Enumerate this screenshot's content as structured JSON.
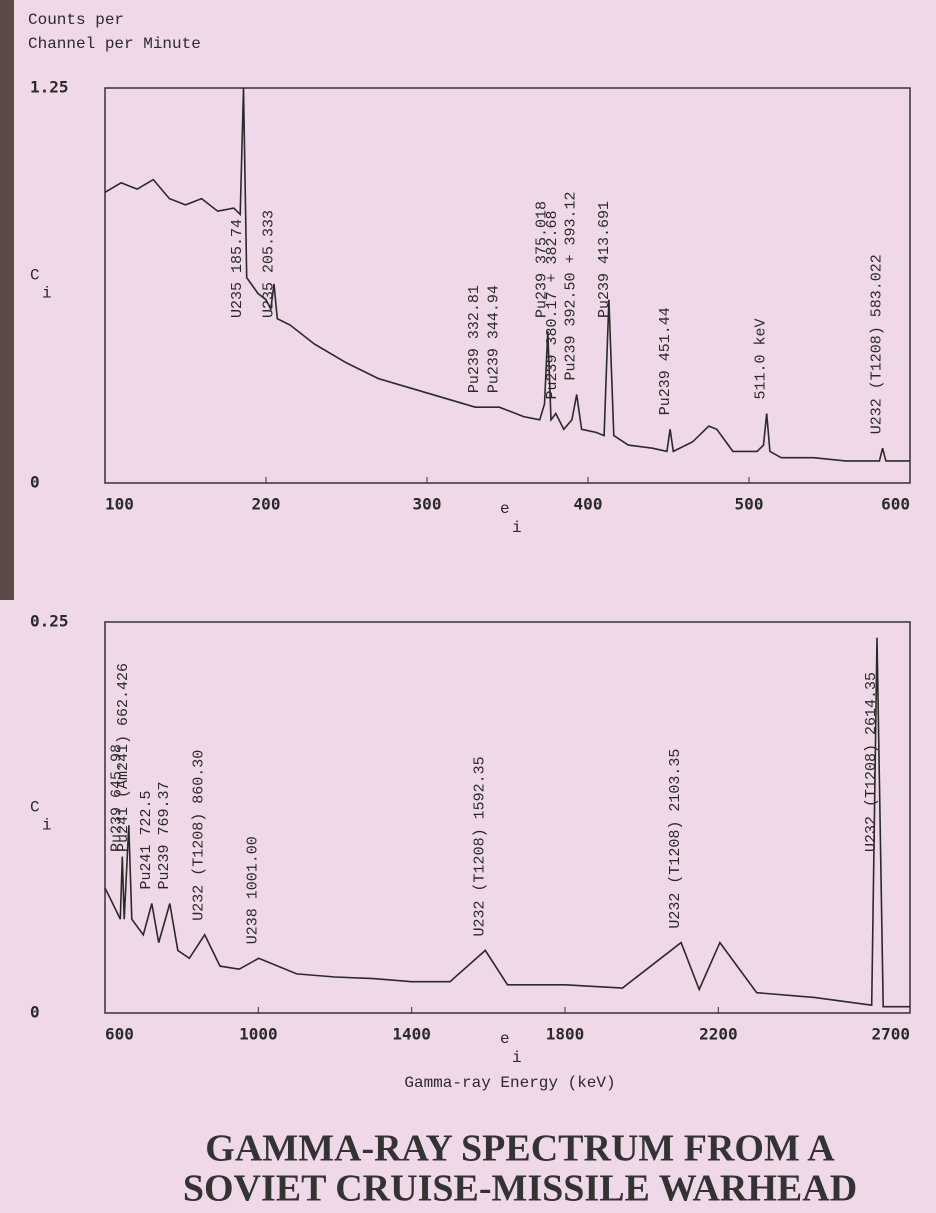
{
  "title": [
    "GAMMA-RAY SPECTRUM FROM A",
    "SOVIET CRUISE-MISSILE WARHEAD"
  ],
  "chart_data": [
    {
      "type": "line",
      "ylabel": [
        "Counts per",
        "Channel per Minute"
      ],
      "axis_symbol_y": [
        "C",
        "i"
      ],
      "axis_symbol_x": [
        "e",
        "i"
      ],
      "color": "#2a2a2a",
      "xlim": [
        100,
        600
      ],
      "ylim": [
        0,
        1.25
      ],
      "xticks": [
        100,
        200,
        300,
        400,
        500,
        600
      ],
      "yticks": [
        0,
        1.25
      ],
      "x": [
        100,
        110,
        120,
        130,
        140,
        150,
        160,
        170,
        180,
        184,
        186,
        188,
        195,
        200,
        203,
        205,
        207,
        215,
        230,
        250,
        270,
        290,
        310,
        330,
        345,
        360,
        370,
        373,
        375,
        377,
        380,
        385,
        390,
        393,
        396,
        405,
        410,
        413,
        416,
        425,
        440,
        449,
        451,
        453,
        465,
        475,
        480,
        490,
        505,
        509,
        511,
        513,
        520,
        540,
        560,
        575,
        581,
        583,
        585,
        600
      ],
      "values": [
        0.92,
        0.95,
        0.93,
        0.96,
        0.9,
        0.88,
        0.9,
        0.86,
        0.87,
        0.85,
        1.25,
        0.65,
        0.6,
        0.58,
        0.55,
        0.63,
        0.52,
        0.5,
        0.44,
        0.38,
        0.33,
        0.3,
        0.27,
        0.24,
        0.24,
        0.21,
        0.2,
        0.25,
        0.48,
        0.2,
        0.22,
        0.17,
        0.2,
        0.28,
        0.17,
        0.16,
        0.15,
        0.58,
        0.15,
        0.12,
        0.11,
        0.1,
        0.17,
        0.1,
        0.13,
        0.18,
        0.17,
        0.1,
        0.1,
        0.12,
        0.22,
        0.1,
        0.08,
        0.08,
        0.07,
        0.07,
        0.07,
        0.11,
        0.07,
        0.07
      ],
      "annotations": [
        {
          "text": "U235 185.74",
          "x": 185.74
        },
        {
          "text": "U235 205.333",
          "x": 205.333
        },
        {
          "text": "Pu239 332.81",
          "x": 332.81
        },
        {
          "text": "Pu239 344.94",
          "x": 344.94
        },
        {
          "text": "Pu239 375.018",
          "x": 375.018
        },
        {
          "text": "Pu239 380.17 + 382.68",
          "x": 381.4
        },
        {
          "text": "Pu239 392.50 + 393.12",
          "x": 392.8
        },
        {
          "text": "Pu239 413.691",
          "x": 413.691
        },
        {
          "text": "Pu239 451.44",
          "x": 451.44
        },
        {
          "text": "511.0 keV",
          "x": 511
        },
        {
          "text": "U232 (T1208) 583.022",
          "x": 583.022
        }
      ]
    },
    {
      "type": "line",
      "xlabel": "Gamma-ray Energy (keV)",
      "axis_symbol_y": [
        "C",
        "i"
      ],
      "axis_symbol_x": [
        "e",
        "i"
      ],
      "color": "#2a2a2a",
      "xlim": [
        600,
        2700
      ],
      "ylim": [
        0,
        0.25
      ],
      "xticks": [
        600,
        1000,
        1400,
        1800,
        2200,
        2700
      ],
      "yticks": [
        0,
        0.25
      ],
      "x": [
        600,
        620,
        640,
        645,
        650,
        662,
        670,
        700,
        722,
        740,
        769,
        790,
        820,
        860,
        900,
        950,
        1001,
        1100,
        1200,
        1300,
        1400,
        1500,
        1592,
        1650,
        1800,
        1950,
        2103,
        2150,
        2204,
        2300,
        2450,
        2600,
        2614,
        2630,
        2700
      ],
      "values": [
        0.08,
        0.07,
        0.06,
        0.1,
        0.06,
        0.12,
        0.06,
        0.05,
        0.07,
        0.045,
        0.07,
        0.04,
        0.035,
        0.05,
        0.03,
        0.028,
        0.035,
        0.025,
        0.023,
        0.022,
        0.02,
        0.02,
        0.04,
        0.018,
        0.018,
        0.016,
        0.045,
        0.015,
        0.045,
        0.013,
        0.01,
        0.005,
        0.24,
        0.004,
        0.004
      ],
      "annotations": [
        {
          "text": "Pu239 645.98",
          "x": 645.98
        },
        {
          "text": "Pu241 (Am241) 662.426",
          "x": 662.426
        },
        {
          "text": "Pu241 722.5",
          "x": 722.5
        },
        {
          "text": "Pu239 769.37",
          "x": 769.37
        },
        {
          "text": "U232 (T1208) 860.30",
          "x": 860.3
        },
        {
          "text": "U238 1001.00",
          "x": 1001
        },
        {
          "text": "U232 (T1208) 1592.35",
          "x": 1592.35
        },
        {
          "text": "U232 (T1208) 2103.35",
          "x": 2103.35
        },
        {
          "text": "U232 (T1208) 2614.35",
          "x": 2614.35
        }
      ]
    }
  ]
}
